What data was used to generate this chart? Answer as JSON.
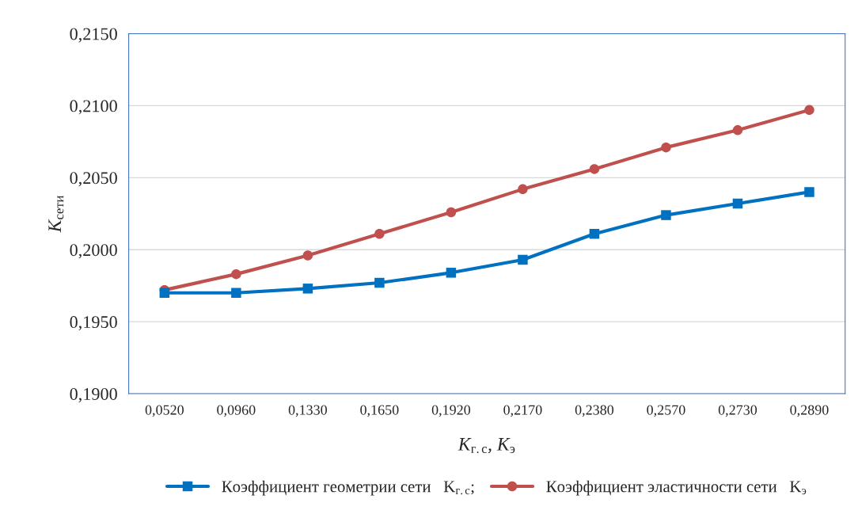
{
  "chart_data": {
    "type": "line",
    "xlabel": "K$_{г.с}$, K$_{э}$",
    "ylabel": "K$_{сети}$",
    "categories": [
      "0,0520",
      "0,0960",
      "0,1330",
      "0,1650",
      "0,1920",
      "0,2170",
      "0,2380",
      "0,2570",
      "0,2730",
      "0,2890"
    ],
    "series": [
      {
        "name": "Коэффициент геометрии сети   K$_{г.с}$;",
        "color": "#0070c0",
        "marker": "square",
        "values": [
          0.197,
          0.197,
          0.1973,
          0.1977,
          0.1984,
          0.1993,
          0.2011,
          0.2024,
          0.2032,
          0.204
        ]
      },
      {
        "name": "Коэффициент эластичности сети   K$_{э}$",
        "color": "#c0504d",
        "marker": "circle",
        "values": [
          0.1972,
          0.1983,
          0.1996,
          0.2011,
          0.2026,
          0.2042,
          0.2056,
          0.2071,
          0.2083,
          0.2097
        ]
      }
    ],
    "ylim": [
      0.19,
      0.215
    ],
    "yticks": [
      {
        "value": 0.19,
        "label": "0,1900"
      },
      {
        "value": 0.195,
        "label": "0,1950"
      },
      {
        "value": 0.2,
        "label": "0,2000"
      },
      {
        "value": 0.205,
        "label": "0,2050"
      },
      {
        "value": 0.21,
        "label": "0,2100"
      },
      {
        "value": 0.215,
        "label": "0,2150"
      }
    ],
    "grid": "y",
    "legend": "bottom",
    "line_style": "solid"
  }
}
